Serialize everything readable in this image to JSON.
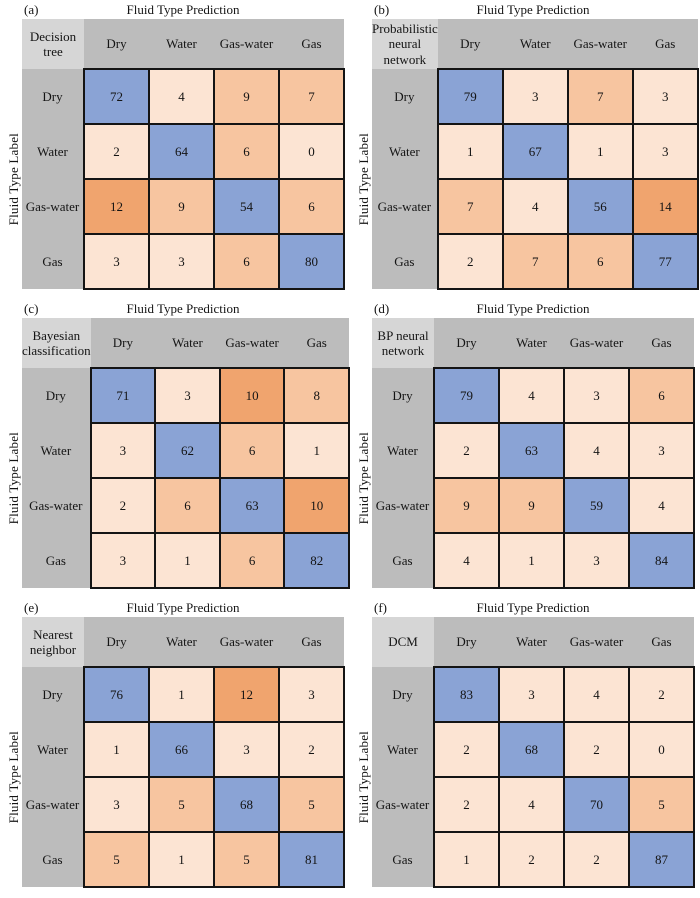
{
  "figure": {
    "panel_title": "Fluid Type Prediction",
    "y_axis_label": "Fluid Type Label",
    "classes": [
      "Dry",
      "Water",
      "Gas-water",
      "Gas"
    ]
  },
  "color_scale": {
    "diagonal_blue": "#8aa3d5",
    "offdiag_bins": [
      {
        "max": 4,
        "color": "#fce4d3"
      },
      {
        "max": 9,
        "color": "#f7c5a0"
      },
      {
        "max": 100,
        "color": "#f0a46e"
      }
    ],
    "header_gray": "#bcbcbc",
    "method_gray": "#d6d6d6",
    "border": "#141414",
    "text": "#141414"
  },
  "panels": [
    {
      "label": "(a)",
      "method_display": "Decision\ntree"
    },
    {
      "label": "(b)",
      "method_display": "Probabilistic\nneural\nnetwork"
    },
    {
      "label": "(c)",
      "method_display": "Bayesian\nclassification"
    },
    {
      "label": "(d)",
      "method_display": "BP neural\nnetwork"
    },
    {
      "label": "(e)",
      "method_display": "Nearest\nneighbor"
    },
    {
      "label": "(f)",
      "method_display": "DCM"
    }
  ],
  "chart_data": [
    {
      "type": "heatmap",
      "panel": "(a)",
      "method": "Decision tree",
      "title": "Fluid Type Prediction",
      "xlabel": "Fluid Type Prediction",
      "ylabel": "Fluid Type Label",
      "x_categories": [
        "Dry",
        "Water",
        "Gas-water",
        "Gas"
      ],
      "y_categories": [
        "Dry",
        "Water",
        "Gas-water",
        "Gas"
      ],
      "values": [
        [
          72,
          4,
          9,
          7
        ],
        [
          2,
          64,
          6,
          0
        ],
        [
          12,
          9,
          54,
          6
        ],
        [
          3,
          3,
          6,
          80
        ]
      ]
    },
    {
      "type": "heatmap",
      "panel": "(b)",
      "method": "Probabilistic neural network",
      "title": "Fluid Type Prediction",
      "xlabel": "Fluid Type Prediction",
      "ylabel": "Fluid Type Label",
      "x_categories": [
        "Dry",
        "Water",
        "Gas-water",
        "Gas"
      ],
      "y_categories": [
        "Dry",
        "Water",
        "Gas-water",
        "Gas"
      ],
      "values": [
        [
          79,
          3,
          7,
          3
        ],
        [
          1,
          67,
          1,
          3
        ],
        [
          7,
          4,
          56,
          14
        ],
        [
          2,
          7,
          6,
          77
        ]
      ]
    },
    {
      "type": "heatmap",
      "panel": "(c)",
      "method": "Bayesian classification",
      "title": "Fluid Type Prediction",
      "xlabel": "Fluid Type Prediction",
      "ylabel": "Fluid Type Label",
      "x_categories": [
        "Dry",
        "Water",
        "Gas-water",
        "Gas"
      ],
      "y_categories": [
        "Dry",
        "Water",
        "Gas-water",
        "Gas"
      ],
      "values": [
        [
          71,
          3,
          10,
          8
        ],
        [
          3,
          62,
          6,
          1
        ],
        [
          2,
          6,
          63,
          10
        ],
        [
          3,
          1,
          6,
          82
        ]
      ]
    },
    {
      "type": "heatmap",
      "panel": "(d)",
      "method": "BP neural network",
      "title": "Fluid Type Prediction",
      "xlabel": "Fluid Type Prediction",
      "ylabel": "Fluid Type Label",
      "x_categories": [
        "Dry",
        "Water",
        "Gas-water",
        "Gas"
      ],
      "y_categories": [
        "Dry",
        "Water",
        "Gas-water",
        "Gas"
      ],
      "values": [
        [
          79,
          4,
          3,
          6
        ],
        [
          2,
          63,
          4,
          3
        ],
        [
          9,
          9,
          59,
          4
        ],
        [
          4,
          1,
          3,
          84
        ]
      ]
    },
    {
      "type": "heatmap",
      "panel": "(e)",
      "method": "Nearest neighbor",
      "title": "Fluid Type Prediction",
      "xlabel": "Fluid Type Prediction",
      "ylabel": "Fluid Type Label",
      "x_categories": [
        "Dry",
        "Water",
        "Gas-water",
        "Gas"
      ],
      "y_categories": [
        "Dry",
        "Water",
        "Gas-water",
        "Gas"
      ],
      "values": [
        [
          76,
          1,
          12,
          3
        ],
        [
          1,
          66,
          3,
          2
        ],
        [
          3,
          5,
          68,
          5
        ],
        [
          5,
          1,
          5,
          81
        ]
      ]
    },
    {
      "type": "heatmap",
      "panel": "(f)",
      "method": "DCM",
      "title": "Fluid Type Prediction",
      "xlabel": "Fluid Type Prediction",
      "ylabel": "Fluid Type Label",
      "x_categories": [
        "Dry",
        "Water",
        "Gas-water",
        "Gas"
      ],
      "y_categories": [
        "Dry",
        "Water",
        "Gas-water",
        "Gas"
      ],
      "values": [
        [
          83,
          3,
          4,
          2
        ],
        [
          2,
          68,
          2,
          0
        ],
        [
          2,
          4,
          70,
          5
        ],
        [
          1,
          2,
          2,
          87
        ]
      ]
    }
  ]
}
